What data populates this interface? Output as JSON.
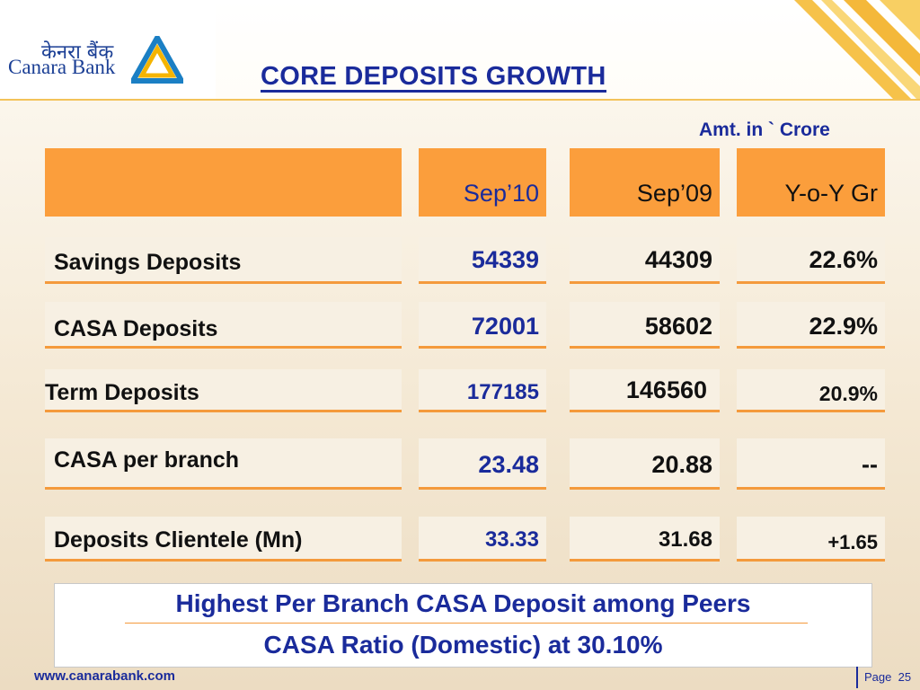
{
  "logo": {
    "hindi": "केनरा बैंक",
    "english": "Canara Bank"
  },
  "title": "CORE DEPOSITS GROWTH",
  "amount_note": "Amt. in ` Crore",
  "table": {
    "columns": [
      "",
      "Sep’10",
      "Sep’09",
      "Y-o-Y Gr"
    ],
    "rows": [
      {
        "label": "Savings Deposits",
        "sep10": "54339",
        "sep09": "44309",
        "yoy": "22.6%"
      },
      {
        "label": "CASA Deposits",
        "sep10": "72001",
        "sep09": "58602",
        "yoy": "22.9%"
      },
      {
        "label": "Term Deposits",
        "sep10": "177185",
        "sep09": "146560",
        "yoy": "20.9%"
      },
      {
        "label": "CASA per branch",
        "sep10": "23.48",
        "sep09": "20.88",
        "yoy": "--"
      },
      {
        "label": "Deposits Clientele (Mn)",
        "sep10": "33.33",
        "sep09": "31.68",
        "yoy": "+1.65"
      }
    ]
  },
  "highlights": [
    "Highest Per Branch CASA Deposit among Peers",
    "CASA Ratio (Domestic) at 30.10%"
  ],
  "footer": {
    "url": "www.canarabank.com",
    "page_label": "Page",
    "page_number": "25"
  },
  "colors": {
    "brand_blue": "#1a2b9b",
    "header_orange": "#fb9e3c",
    "accent_yellow": "#f3c35a"
  }
}
